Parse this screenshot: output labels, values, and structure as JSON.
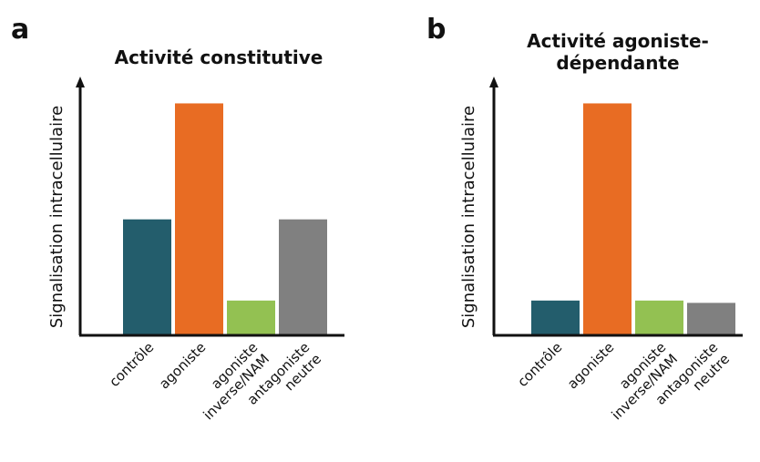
{
  "chart_data": [
    {
      "panel": "a",
      "type": "bar",
      "title": "Activité constitutive",
      "title_lines": [
        "Activité constitutive"
      ],
      "ylabel": "Signalisation intracellulaire",
      "xlabel": "",
      "categories": [
        [
          "contrôle"
        ],
        [
          "agoniste"
        ],
        [
          "agoniste",
          "inverse/NAM"
        ],
        [
          "antagoniste",
          "neutre"
        ]
      ],
      "values": [
        0.5,
        1.0,
        0.15,
        0.5
      ],
      "colors": [
        "#235d6c",
        "#e86c23",
        "#93c152",
        "#808080"
      ],
      "ylim": [
        0,
        1.1
      ],
      "grid": false
    },
    {
      "panel": "b",
      "type": "bar",
      "title": "Activité agoniste-dépendante",
      "title_lines": [
        "Activité agoniste-",
        "dépendante"
      ],
      "ylabel": "Signalisation intracellulaire",
      "xlabel": "",
      "categories": [
        [
          "contrôle"
        ],
        [
          "agoniste"
        ],
        [
          "agoniste",
          "inverse/NAM"
        ],
        [
          "antagoniste",
          "neutre"
        ]
      ],
      "values": [
        0.15,
        1.0,
        0.15,
        0.14
      ],
      "colors": [
        "#235d6c",
        "#e86c23",
        "#93c152",
        "#808080"
      ],
      "ylim": [
        0,
        1.1
      ],
      "grid": false
    }
  ]
}
